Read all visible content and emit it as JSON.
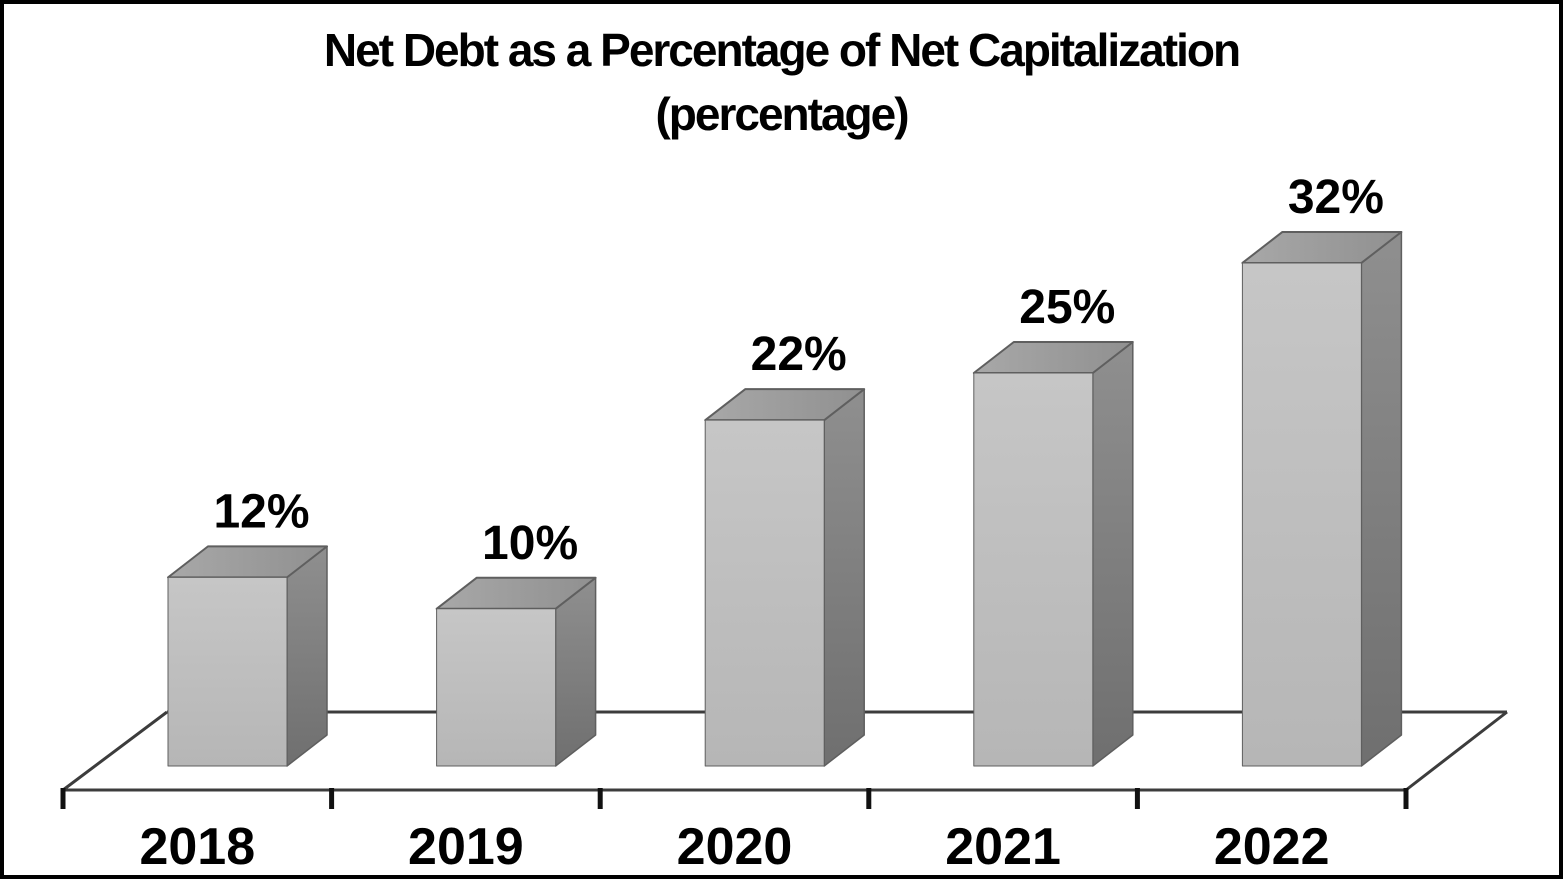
{
  "frame": {
    "background": "#ffffff",
    "border_color": "#000000"
  },
  "title": {
    "line1": "Net Debt as a Percentage of Net Capitalization",
    "line2": "(percentage)"
  },
  "chart_data": {
    "type": "bar",
    "style": "3d-column",
    "title": "Net Debt as a Percentage of Net Capitalization (percentage)",
    "categories": [
      "2018",
      "2019",
      "2020",
      "2021",
      "2022"
    ],
    "values": [
      12,
      10,
      22,
      25,
      32
    ],
    "data_labels": [
      "12%",
      "10%",
      "22%",
      "25%",
      "32%"
    ],
    "xlabel": "",
    "ylabel": "",
    "ylim": [
      0,
      35
    ],
    "legend": "none",
    "grid": false,
    "y_axis_shown": false,
    "colors": {
      "bar_front_light": "#c6c6c6",
      "bar_front": "#b6b6b6",
      "bar_top_light": "#a8a8a8",
      "bar_top": "#909090",
      "bar_side_top": "#8f8f8f",
      "bar_side_bottom": "#6f6f6f",
      "edge": "#5f5f5f",
      "axis": "#3c3c3c",
      "tick": "#111111",
      "text": "#000000"
    }
  }
}
